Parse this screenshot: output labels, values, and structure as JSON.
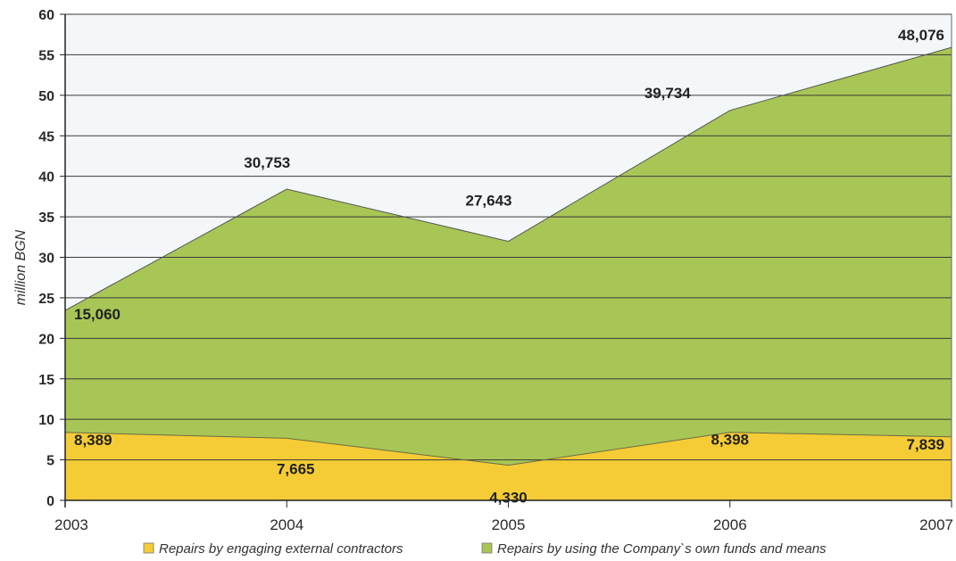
{
  "chart_data": {
    "type": "area",
    "stacked": true,
    "title": "",
    "xlabel": "",
    "ylabel": "million BGN",
    "ylim": [
      0,
      60
    ],
    "yticks": [
      0,
      5,
      10,
      15,
      20,
      25,
      30,
      35,
      40,
      45,
      50,
      55,
      60
    ],
    "grid": true,
    "legend_position": "bottom",
    "categories": [
      "2003",
      "2004",
      "2005",
      "2006",
      "2007"
    ],
    "series": [
      {
        "name": "Repairs by engaging external contractors",
        "values": [
          8.389,
          7.665,
          4.33,
          8.398,
          7.839
        ],
        "labels": [
          "8,389",
          "7,665",
          "4,330",
          "8,398",
          "7,839"
        ],
        "color": "#f5cc35"
      },
      {
        "name": "Repairs by using the Company`s own funds and means",
        "values": [
          15.06,
          30.753,
          27.643,
          39.734,
          48.076
        ],
        "labels": [
          "15,060",
          "30,753",
          "27,643",
          "39,734",
          "48,076"
        ],
        "color": "#a8c656"
      }
    ]
  }
}
